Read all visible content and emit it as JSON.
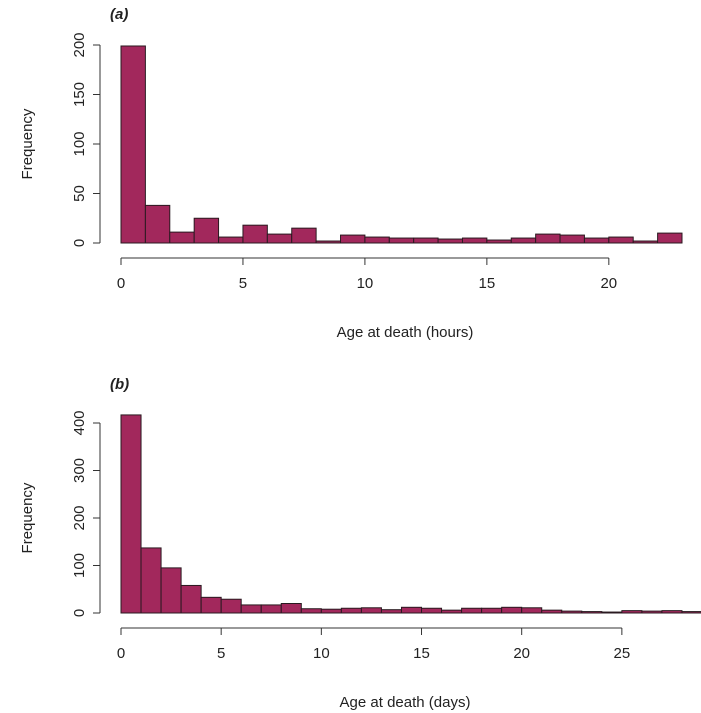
{
  "chart_data": [
    {
      "type": "histogram",
      "title": "(a)",
      "xlabel": "Age at death (hours)",
      "ylabel": "Frequency",
      "color": "#a2285c",
      "bins": [
        0,
        1,
        2,
        3,
        4,
        5,
        6,
        7,
        8,
        9,
        10,
        11,
        12,
        13,
        14,
        15,
        16,
        17,
        18,
        19,
        20,
        21,
        22,
        23
      ],
      "values": [
        199,
        38,
        11,
        25,
        6,
        18,
        9,
        15,
        2,
        8,
        6,
        5,
        5,
        4,
        5,
        3,
        5,
        9,
        8,
        5,
        6,
        2,
        10
      ],
      "xlim": [
        0,
        23
      ],
      "xticks": [
        0,
        5,
        10,
        15,
        20
      ],
      "ylim": [
        0,
        200
      ],
      "yticks": [
        0,
        50,
        100,
        150,
        200
      ]
    },
    {
      "type": "histogram",
      "title": "(b)",
      "xlabel": "Age at death (days)",
      "ylabel": "Frequency",
      "color": "#a2285c",
      "bins": [
        0,
        1,
        2,
        3,
        4,
        5,
        6,
        7,
        8,
        9,
        10,
        11,
        12,
        13,
        14,
        15,
        16,
        17,
        18,
        19,
        20,
        21,
        22,
        23,
        24,
        25,
        26,
        27,
        28,
        29
      ],
      "values": [
        417,
        137,
        95,
        58,
        33,
        29,
        17,
        17,
        20,
        9,
        8,
        10,
        11,
        7,
        12,
        10,
        6,
        10,
        10,
        12,
        11,
        6,
        4,
        3,
        2,
        5,
        4,
        5,
        3
      ],
      "xlim": [
        0,
        29
      ],
      "xticks": [
        0,
        5,
        10,
        15,
        20,
        25
      ],
      "ylim": [
        0,
        400
      ],
      "yticks": [
        0,
        100,
        200,
        300,
        400
      ]
    }
  ]
}
